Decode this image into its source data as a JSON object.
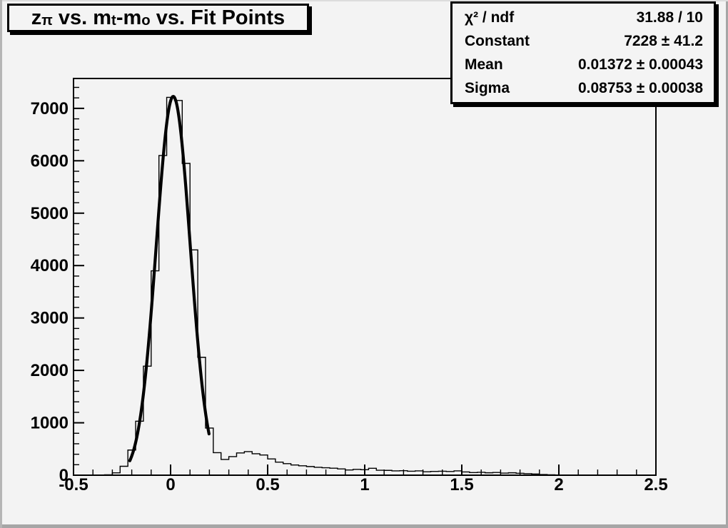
{
  "canvas": {
    "background": "#f3f3f3",
    "pave_fill": "#f4f4f4",
    "line_color": "#000000",
    "border_shadow": "#a6a6a6",
    "border_light": "#dcdcdc"
  },
  "title": {
    "part1": "z",
    "sub1": "π",
    "part2": " vs. m",
    "sub2": "t",
    "part3": "-m",
    "sub3": "o",
    "part4": " vs. Fit Points"
  },
  "stats": {
    "rows": [
      {
        "label": "χ² / ndf",
        "value": "31.88 / 10"
      },
      {
        "label": "Constant",
        "value": "7228 ± 41.2"
      },
      {
        "label": "Mean",
        "value": "0.01372 ± 0.00043"
      },
      {
        "label": "Sigma",
        "value": "0.08753 ± 0.00038"
      }
    ]
  },
  "chart_data": {
    "type": "bar",
    "subtype": "step-histogram",
    "title": "z_pi vs. m_t-m_o vs. Fit Points",
    "xlabel": "",
    "ylabel": "",
    "xlim": [
      -0.5,
      2.5
    ],
    "ylim": [
      0,
      7570
    ],
    "grid": false,
    "legend_position": "stats box top-right",
    "bin_start": -0.5,
    "bin_width": 0.04,
    "values": [
      0,
      0,
      0,
      4,
      8,
      45,
      170,
      480,
      1030,
      2080,
      3900,
      6100,
      7210,
      7150,
      5950,
      4300,
      2250,
      900,
      430,
      300,
      355,
      425,
      450,
      410,
      385,
      310,
      250,
      220,
      195,
      180,
      165,
      150,
      142,
      133,
      120,
      100,
      112,
      105,
      132,
      95,
      92,
      82,
      86,
      76,
      82,
      66,
      72,
      76,
      70,
      82,
      62,
      50,
      56,
      46,
      52,
      40,
      46,
      36,
      30,
      22,
      12,
      8,
      4,
      0,
      0,
      0,
      0,
      0,
      0,
      0,
      0,
      0,
      0,
      0,
      0
    ],
    "x_ticks": [
      -0.5,
      0,
      0.5,
      1,
      1.5,
      2,
      2.5
    ],
    "x_tick_labels": [
      "-0.5",
      "0",
      "0.5",
      "1",
      "1.5",
      "2",
      "2.5"
    ],
    "x_minor_step": 0.1,
    "y_ticks": [
      0,
      1000,
      2000,
      3000,
      4000,
      5000,
      6000,
      7000
    ],
    "y_tick_labels": [
      "0",
      "1000",
      "2000",
      "3000",
      "4000",
      "5000",
      "6000",
      "7000"
    ],
    "y_minor_step": 200,
    "fit": {
      "type": "gaussian",
      "constant": 7228,
      "mean": 0.01372,
      "sigma": 0.08753,
      "chi2": 31.88,
      "ndf": 10,
      "draw_range": [
        -0.21,
        0.2
      ]
    }
  }
}
